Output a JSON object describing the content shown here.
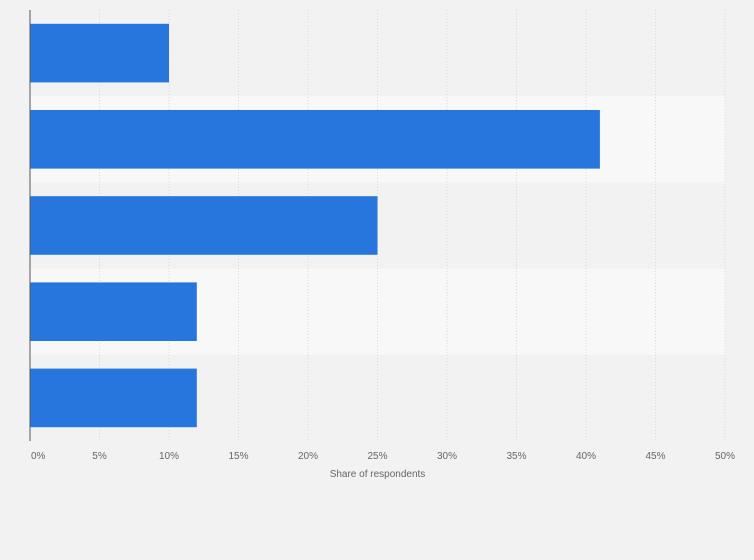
{
  "chart_data": {
    "type": "bar",
    "orientation": "horizontal",
    "categories": [
      "",
      "",
      "",
      "",
      ""
    ],
    "values": [
      10,
      41,
      25,
      12,
      12
    ],
    "unit": "%",
    "xlabel": "Share of respondents",
    "ylabel": "",
    "xlim": [
      0,
      50
    ],
    "x_ticks": [
      "0%",
      "5%",
      "10%",
      "15%",
      "20%",
      "25%",
      "30%",
      "35%",
      "40%",
      "45%",
      "50%"
    ],
    "grid": true,
    "legend": "none",
    "colors": {
      "bar": "#2776dd",
      "band_dark": "#f2f2f2",
      "band_light": "#f8f8f8",
      "grid": "#d9d9d9",
      "axis": "#555555"
    }
  }
}
